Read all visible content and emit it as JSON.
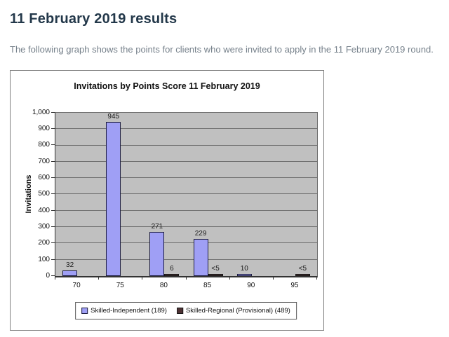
{
  "page": {
    "heading": "11 February 2019 results",
    "description": "The following graph shows the points for clients who were invited to apply in the 11 February 2019 round."
  },
  "colors": {
    "heading_text": "#23384a",
    "body_text": "#76818b",
    "chart_border": "#7f7f7f",
    "plot_background": "#c0c0c0",
    "gridline": "#707070",
    "axis": "#333333",
    "data_label": "#1a1a1a",
    "series_fills": [
      "#9f9ff5",
      "#4e3234"
    ],
    "series_borders": [
      "#1d1d40",
      "#161616"
    ]
  },
  "chart_data": {
    "type": "bar",
    "title": "Invitations by Points Score 11 February 2019",
    "xlabel": "",
    "ylabel": "Invitations",
    "ylim": [
      0,
      1000
    ],
    "ytick_step": 100,
    "ytick_labels": [
      "0",
      "100",
      "200",
      "300",
      "400",
      "500",
      "600",
      "700",
      "800",
      "900",
      "1,000"
    ],
    "categories": [
      "70",
      "75",
      "80",
      "85",
      "90",
      "95"
    ],
    "series": [
      {
        "name": "Skilled-Independent (189)",
        "values": [
          32,
          945,
          271,
          229,
          10,
          0
        ],
        "labels": [
          "32",
          "945",
          "271",
          "229",
          "10",
          ""
        ]
      },
      {
        "name": "Skilled-Regional (Provisional) (489)",
        "values": [
          0,
          0,
          6,
          3,
          0,
          3
        ],
        "labels": [
          "",
          "",
          "6",
          "<5",
          "",
          "<5"
        ]
      }
    ],
    "grid": true,
    "legend_position": "bottom"
  }
}
